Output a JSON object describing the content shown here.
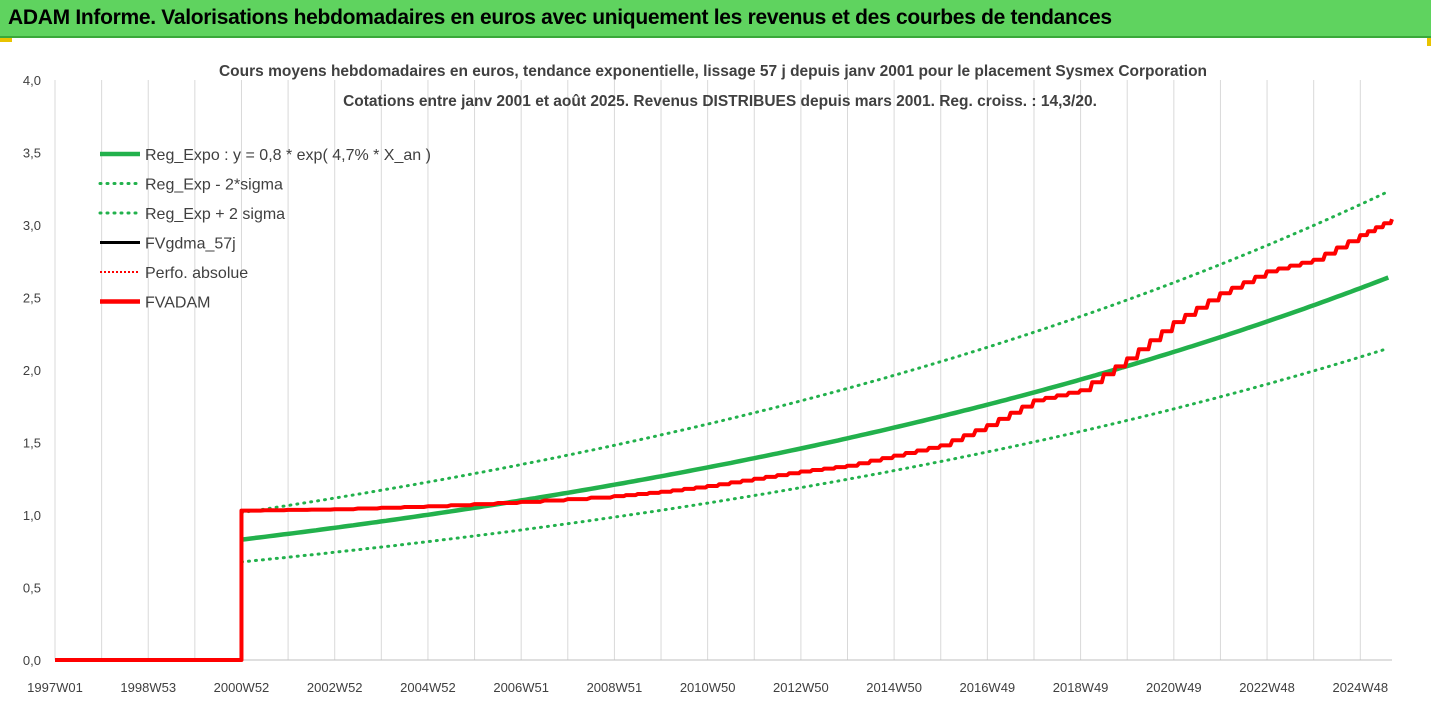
{
  "banner": {
    "title": "ADAM Informe. Valorisations hebdomadaires en euros avec uniquement les revenus et des courbes de tendances"
  },
  "chart_data": {
    "type": "line",
    "title": "Cours moyens hebdomadaires en euros, tendance exponentielle, lissage 57 j depuis janv 2001 pour le placement Sysmex Corporation",
    "subtitle": "Cotations entre janv 2001 et août 2025. Revenus DISTRIBUES depuis mars 2001. Reg. croiss. : 14,3/20.",
    "x_tick_labels": [
      "1997W01",
      "1998W53",
      "2000W52",
      "2002W52",
      "2004W52",
      "2006W51",
      "2008W51",
      "2010W50",
      "2012W50",
      "2014W50",
      "2016W49",
      "2018W49",
      "2020W49",
      "2022W48",
      "2024W48"
    ],
    "x_tick_years": [
      1997.0,
      1999.0,
      2001.0,
      2003.0,
      2005.0,
      2007.0,
      2009.0,
      2011.0,
      2013.0,
      2015.0,
      2017.0,
      2019.0,
      2021.0,
      2023.0,
      2025.0
    ],
    "x_range": [
      1997.0,
      2025.68
    ],
    "ylim": [
      0,
      4
    ],
    "y_ticks": [
      "0,0",
      "0,5",
      "1,0",
      "1,5",
      "2,0",
      "2,5",
      "3,0",
      "3,5",
      "4,0"
    ],
    "y_tick_values": [
      0,
      0.5,
      1,
      1.5,
      2,
      2.5,
      3,
      3.5,
      4
    ],
    "grid": "vertical",
    "legend_position": "top-left",
    "legend": [
      {
        "label": "Reg_Expo : y = 0,8 * exp( 4,7% *  X_an )",
        "color": "#22b14c",
        "style": "solid-thick"
      },
      {
        "label": "Reg_Exp - 2*sigma",
        "color": "#22b14c",
        "style": "dotted"
      },
      {
        "label": "Reg_Exp + 2 sigma",
        "color": "#22b14c",
        "style": "dotted"
      },
      {
        "label": "FVgdma_57j",
        "color": "#000000",
        "style": "solid"
      },
      {
        "label": "Perfo. absolue",
        "color": "#ff0000",
        "style": "dotted"
      },
      {
        "label": "FVADAM",
        "color": "#ff0000",
        "style": "solid-thick"
      }
    ],
    "regression": {
      "start": 2001.0,
      "end": 2025.68,
      "a": 0.83,
      "rate": 0.047,
      "lower_factor": 0.815,
      "upper_factor": 1.225
    },
    "fvadam": {
      "zero_until": 2000.95,
      "x": [
        2001.0,
        2003.0,
        2005.0,
        2007.0,
        2009.0,
        2010.0,
        2011.0,
        2012.0,
        2013.0,
        2014.0,
        2015.0,
        2016.0,
        2017.0,
        2018.0,
        2019.0,
        2020.0,
        2021.0,
        2022.0,
        2023.0,
        2024.0,
        2025.0,
        2025.68
      ],
      "y": [
        1.03,
        1.04,
        1.06,
        1.09,
        1.13,
        1.16,
        1.2,
        1.25,
        1.3,
        1.34,
        1.41,
        1.48,
        1.62,
        1.79,
        1.86,
        2.08,
        2.33,
        2.53,
        2.68,
        2.76,
        2.93,
        3.04
      ]
    }
  },
  "colors": {
    "banner": "#5fd35f",
    "green": "#22b14c",
    "red": "#ff0000",
    "black": "#000000",
    "grid": "#d9d9d9"
  }
}
